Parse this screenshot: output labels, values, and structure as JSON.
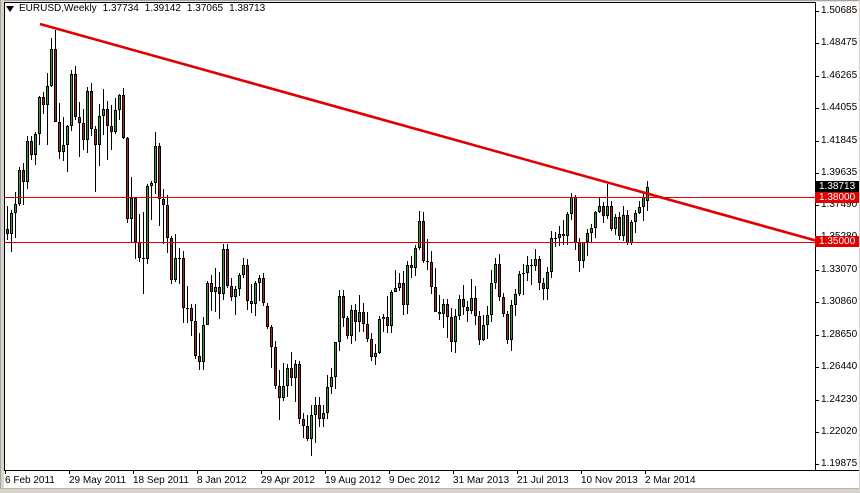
{
  "window": {
    "title": {
      "symbol_period": "EURUSD,Weekly",
      "open": "1.37734",
      "high": "1.39142",
      "low": "1.37065",
      "close": "1.38713"
    }
  },
  "colors": {
    "background": "#FFFFFF",
    "frame": "#000000",
    "text": "#000000",
    "up_body": "#28A128",
    "down_body": "#A12828",
    "wick": "#000000",
    "object_red": "#E00000",
    "badge_current_bg": "#000000",
    "badge_line_bg": "#E00000",
    "badge_text": "#FFFFFF",
    "chrome": "#D8D4CC"
  },
  "y_axis": {
    "tick_labels": [
      "1.50685",
      "1.48475",
      "1.46265",
      "1.44055",
      "1.41845",
      "1.39635",
      "1.37490",
      "1.35280",
      "1.33070",
      "1.30860",
      "1.28650",
      "1.26440",
      "1.24230",
      "1.22020",
      "1.19875"
    ],
    "badges": [
      {
        "value": "1.38713",
        "kind": "current"
      },
      {
        "value": "1.38000",
        "kind": "hline"
      },
      {
        "value": "1.35000",
        "kind": "hline"
      }
    ]
  },
  "x_axis": {
    "tick_labels": [
      {
        "label": "6 Feb 2011",
        "week": 0
      },
      {
        "label": "29 May 2011",
        "week": 16
      },
      {
        "label": "18 Sep 2011",
        "week": 32
      },
      {
        "label": "8 Jan 2012",
        "week": 48
      },
      {
        "label": "29 Apr 2012",
        "week": 64
      },
      {
        "label": "19 Aug 2012",
        "week": 80
      },
      {
        "label": "9 Dec 2012",
        "week": 96
      },
      {
        "label": "31 Mar 2013",
        "week": 112
      },
      {
        "label": "21 Jul 2013",
        "week": 128
      },
      {
        "label": "10 Nov 2013",
        "week": 144
      },
      {
        "label": "2 Mar 2014",
        "week": 160
      }
    ]
  },
  "chart_data": {
    "type": "candlestick",
    "symbol": "EURUSD",
    "timeframe": "Weekly",
    "title": "EURUSD,Weekly 1.37734 1.39142 1.37065 1.38713",
    "last_bar_ohlc": [
      1.37734,
      1.39142,
      1.37065,
      1.38713
    ],
    "ylim": [
      1.19875,
      1.50685
    ],
    "x_range": "6 Feb 2011 to 2 Mar 2014",
    "grid": false,
    "annotations": {
      "horizontal_lines": [
        {
          "price": 1.38
        },
        {
          "price": 1.35
        }
      ],
      "trendline": {
        "from": {
          "week_index": 8.25,
          "price": 1.498
        },
        "to": {
          "week_index": 202,
          "price": 1.3508
        }
      }
    },
    "candles": [
      [
        1.3585,
        1.3743,
        1.3508,
        1.355
      ],
      [
        1.355,
        1.3715,
        1.3428,
        1.3693
      ],
      [
        1.3693,
        1.3838,
        1.3525,
        1.3755
      ],
      [
        1.3755,
        1.4007,
        1.3745,
        1.3987
      ],
      [
        1.3987,
        1.4036,
        1.3752,
        1.3902
      ],
      [
        1.3902,
        1.422,
        1.386,
        1.4181
      ],
      [
        1.4181,
        1.4219,
        1.4053,
        1.4088
      ],
      [
        1.4088,
        1.4246,
        1.402,
        1.423
      ],
      [
        1.423,
        1.449,
        1.4155,
        1.4483
      ],
      [
        1.4483,
        1.452,
        1.4365,
        1.443
      ],
      [
        1.443,
        1.4649,
        1.4157,
        1.4558
      ],
      [
        1.4558,
        1.4882,
        1.455,
        1.4807
      ],
      [
        1.4807,
        1.494,
        1.431,
        1.4316
      ],
      [
        1.4316,
        1.4442,
        1.4065,
        1.4112
      ],
      [
        1.4112,
        1.4345,
        1.4048,
        1.416
      ],
      [
        1.416,
        1.4295,
        1.397,
        1.4286
      ],
      [
        1.4286,
        1.4667,
        1.4255,
        1.4637
      ],
      [
        1.4637,
        1.4696,
        1.4324,
        1.4349
      ],
      [
        1.4349,
        1.4452,
        1.4074,
        1.4306
      ],
      [
        1.4306,
        1.44,
        1.4126,
        1.4188
      ],
      [
        1.4188,
        1.4552,
        1.4102,
        1.4527
      ],
      [
        1.4527,
        1.4578,
        1.422,
        1.4264
      ],
      [
        1.4264,
        1.4285,
        1.3837,
        1.4157
      ],
      [
        1.4157,
        1.4438,
        1.4013,
        1.4357
      ],
      [
        1.4357,
        1.4536,
        1.4227,
        1.4399
      ],
      [
        1.4399,
        1.4454,
        1.4055,
        1.4283
      ],
      [
        1.4283,
        1.443,
        1.4123,
        1.4246
      ],
      [
        1.4246,
        1.4477,
        1.4235,
        1.4397
      ],
      [
        1.4397,
        1.4501,
        1.4328,
        1.4499
      ],
      [
        1.4499,
        1.4548,
        1.42,
        1.4205
      ],
      [
        1.4205,
        1.4211,
        1.3625,
        1.3656
      ],
      [
        1.3656,
        1.3937,
        1.3495,
        1.3795
      ],
      [
        1.3795,
        1.3798,
        1.3384,
        1.35
      ],
      [
        1.35,
        1.369,
        1.336,
        1.3387
      ],
      [
        1.3387,
        1.3699,
        1.3145,
        1.3379
      ],
      [
        1.3379,
        1.3893,
        1.3346,
        1.388
      ],
      [
        1.388,
        1.3914,
        1.365,
        1.3898
      ],
      [
        1.3898,
        1.4247,
        1.3821,
        1.4149
      ],
      [
        1.4149,
        1.4169,
        1.3607,
        1.379
      ],
      [
        1.379,
        1.3859,
        1.3483,
        1.3752
      ],
      [
        1.3752,
        1.3814,
        1.3421,
        1.3525
      ],
      [
        1.3525,
        1.3539,
        1.3212,
        1.324
      ],
      [
        1.324,
        1.3549,
        1.3226,
        1.3391
      ],
      [
        1.3391,
        1.3458,
        1.3212,
        1.3386
      ],
      [
        1.3386,
        1.3434,
        1.2946,
        1.3049
      ],
      [
        1.3049,
        1.3199,
        1.2945,
        1.3045
      ],
      [
        1.3045,
        1.3077,
        1.2858,
        1.2959
      ],
      [
        1.2959,
        1.3076,
        1.2698,
        1.2721
      ],
      [
        1.2721,
        1.2879,
        1.2624,
        1.2679
      ],
      [
        1.2679,
        1.2986,
        1.2626,
        1.2934
      ],
      [
        1.2934,
        1.3234,
        1.2932,
        1.3218
      ],
      [
        1.3218,
        1.327,
        1.3026,
        1.3158
      ],
      [
        1.3158,
        1.3321,
        1.3023,
        1.3193
      ],
      [
        1.3193,
        1.3293,
        1.2974,
        1.3141
      ],
      [
        1.3141,
        1.3486,
        1.3105,
        1.345
      ],
      [
        1.345,
        1.3486,
        1.3185,
        1.3198
      ],
      [
        1.3198,
        1.325,
        1.3096,
        1.3124
      ],
      [
        1.3124,
        1.3195,
        1.3003,
        1.3175
      ],
      [
        1.3175,
        1.3285,
        1.3133,
        1.327
      ],
      [
        1.327,
        1.3386,
        1.3252,
        1.334
      ],
      [
        1.334,
        1.338,
        1.3035,
        1.3099
      ],
      [
        1.3099,
        1.3213,
        1.3015,
        1.3078
      ],
      [
        1.3078,
        1.3229,
        1.2994,
        1.3219
      ],
      [
        1.3219,
        1.327,
        1.3095,
        1.3249
      ],
      [
        1.3249,
        1.3284,
        1.306,
        1.3084
      ],
      [
        1.306,
        1.3085,
        1.2905,
        1.2917
      ],
      [
        1.2917,
        1.2935,
        1.2642,
        1.278
      ],
      [
        1.278,
        1.2824,
        1.2495,
        1.2517
      ],
      [
        1.2517,
        1.2625,
        1.2288,
        1.2434
      ],
      [
        1.2434,
        1.2672,
        1.2413,
        1.2516
      ],
      [
        1.2516,
        1.2668,
        1.2443,
        1.2638
      ],
      [
        1.2638,
        1.2748,
        1.252,
        1.257
      ],
      [
        1.257,
        1.2693,
        1.2407,
        1.2667
      ],
      [
        1.2667,
        1.2689,
        1.226,
        1.2291
      ],
      [
        1.2291,
        1.2333,
        1.2162,
        1.2247
      ],
      [
        1.2247,
        1.2317,
        1.2144,
        1.2157
      ],
      [
        1.2157,
        1.239,
        1.2042,
        1.232
      ],
      [
        1.232,
        1.2444,
        1.2132,
        1.2387
      ],
      [
        1.2387,
        1.2443,
        1.2241,
        1.229
      ],
      [
        1.229,
        1.2385,
        1.224,
        1.2331
      ],
      [
        1.2331,
        1.2589,
        1.2295,
        1.2512
      ],
      [
        1.2512,
        1.2637,
        1.2465,
        1.2578
      ],
      [
        1.2578,
        1.2819,
        1.25,
        1.2815
      ],
      [
        1.2815,
        1.3169,
        1.2755,
        1.3128
      ],
      [
        1.3128,
        1.3172,
        1.292,
        1.2981
      ],
      [
        1.2981,
        1.2991,
        1.2835,
        1.2855
      ],
      [
        1.2855,
        1.3071,
        1.2803,
        1.3032
      ],
      [
        1.3032,
        1.3072,
        1.2825,
        1.2953
      ],
      [
        1.2953,
        1.3139,
        1.2887,
        1.3022
      ],
      [
        1.3022,
        1.308,
        1.2882,
        1.294
      ],
      [
        1.294,
        1.3021,
        1.282,
        1.2838
      ],
      [
        1.2838,
        1.2875,
        1.269,
        1.2714
      ],
      [
        1.2714,
        1.28,
        1.2661,
        1.2741
      ],
      [
        1.2741,
        1.2991,
        1.2736,
        1.2976
      ],
      [
        1.2976,
        1.3009,
        1.2882,
        1.2986
      ],
      [
        1.2986,
        1.3127,
        1.2876,
        1.2926
      ],
      [
        1.2926,
        1.3173,
        1.288,
        1.3159
      ],
      [
        1.3159,
        1.3308,
        1.3157,
        1.3183
      ],
      [
        1.3183,
        1.3285,
        1.3165,
        1.3218
      ],
      [
        1.3218,
        1.3299,
        1.2998,
        1.3069
      ],
      [
        1.3069,
        1.3366,
        1.3007,
        1.3343
      ],
      [
        1.3343,
        1.3404,
        1.3255,
        1.3318
      ],
      [
        1.3318,
        1.348,
        1.3265,
        1.3459
      ],
      [
        1.3459,
        1.3711,
        1.344,
        1.364
      ],
      [
        1.364,
        1.3698,
        1.3352,
        1.3365
      ],
      [
        1.3365,
        1.352,
        1.3305,
        1.3359
      ],
      [
        1.3359,
        1.3434,
        1.3143,
        1.319
      ],
      [
        1.319,
        1.3319,
        1.3018,
        1.3022
      ],
      [
        1.3022,
        1.3134,
        1.2966,
        1.3005
      ],
      [
        1.3005,
        1.3108,
        1.2911,
        1.3074
      ],
      [
        1.3074,
        1.3106,
        1.2844,
        1.2988
      ],
      [
        1.2988,
        1.3048,
        1.275,
        1.2817
      ],
      [
        1.2817,
        1.3039,
        1.274,
        1.2992
      ],
      [
        1.2992,
        1.3138,
        1.2966,
        1.311
      ],
      [
        1.311,
        1.3202,
        1.3001,
        1.3052
      ],
      [
        1.3052,
        1.3094,
        1.2954,
        1.303
      ],
      [
        1.303,
        1.3243,
        1.3006,
        1.3119
      ],
      [
        1.3119,
        1.3195,
        1.2935,
        1.2994
      ],
      [
        1.2994,
        1.303,
        1.2796,
        1.2833
      ],
      [
        1.2833,
        1.2998,
        1.2821,
        1.2934
      ],
      [
        1.2934,
        1.3061,
        1.2836,
        1.2999
      ],
      [
        1.2999,
        1.3306,
        1.2955,
        1.3217
      ],
      [
        1.3217,
        1.339,
        1.3177,
        1.3346
      ],
      [
        1.3346,
        1.3415,
        1.3097,
        1.3122
      ],
      [
        1.3122,
        1.315,
        1.2985,
        1.301
      ],
      [
        1.301,
        1.3031,
        1.2806,
        1.283
      ],
      [
        1.283,
        1.3103,
        1.2755,
        1.3068
      ],
      [
        1.3068,
        1.3177,
        1.2993,
        1.3141
      ],
      [
        1.3141,
        1.3297,
        1.3132,
        1.3278
      ],
      [
        1.3278,
        1.3345,
        1.3135,
        1.3283
      ],
      [
        1.3283,
        1.34,
        1.3232,
        1.3343
      ],
      [
        1.3343,
        1.338,
        1.3205,
        1.3332
      ],
      [
        1.3332,
        1.3452,
        1.3299,
        1.3382
      ],
      [
        1.3382,
        1.34,
        1.3172,
        1.322
      ],
      [
        1.322,
        1.3255,
        1.3105,
        1.318
      ],
      [
        1.318,
        1.3325,
        1.3104,
        1.3295
      ],
      [
        1.3295,
        1.3569,
        1.3255,
        1.3524
      ],
      [
        1.3524,
        1.3564,
        1.3462,
        1.3522
      ],
      [
        1.3522,
        1.3607,
        1.3472,
        1.3554
      ],
      [
        1.3554,
        1.3646,
        1.348,
        1.3541
      ],
      [
        1.3541,
        1.3704,
        1.3475,
        1.3686
      ],
      [
        1.3686,
        1.3832,
        1.365,
        1.38
      ],
      [
        1.38,
        1.3817,
        1.3442,
        1.3487
      ],
      [
        1.3487,
        1.3524,
        1.3295,
        1.3368
      ],
      [
        1.3368,
        1.3498,
        1.3318,
        1.3494
      ],
      [
        1.3494,
        1.3584,
        1.34,
        1.3556
      ],
      [
        1.3556,
        1.3622,
        1.3487,
        1.3592
      ],
      [
        1.3592,
        1.3708,
        1.3525,
        1.3702
      ],
      [
        1.3702,
        1.3795,
        1.3692,
        1.3741
      ],
      [
        1.3741,
        1.377,
        1.3625,
        1.3674
      ],
      [
        1.3674,
        1.3893,
        1.3654,
        1.3743
      ],
      [
        1.3743,
        1.3777,
        1.3572,
        1.3587
      ],
      [
        1.3587,
        1.3687,
        1.3548,
        1.3668
      ],
      [
        1.3668,
        1.3699,
        1.3508,
        1.354
      ],
      [
        1.354,
        1.374,
        1.3507,
        1.3678
      ],
      [
        1.3678,
        1.3717,
        1.3477,
        1.3487
      ],
      [
        1.3487,
        1.3644,
        1.3475,
        1.3635
      ],
      [
        1.3635,
        1.3715,
        1.3561,
        1.3693
      ],
      [
        1.3693,
        1.3773,
        1.3685,
        1.3735
      ],
      [
        1.3735,
        1.3826,
        1.3643,
        1.3802
      ],
      [
        1.37734,
        1.39142,
        1.37065,
        1.38713
      ]
    ]
  }
}
